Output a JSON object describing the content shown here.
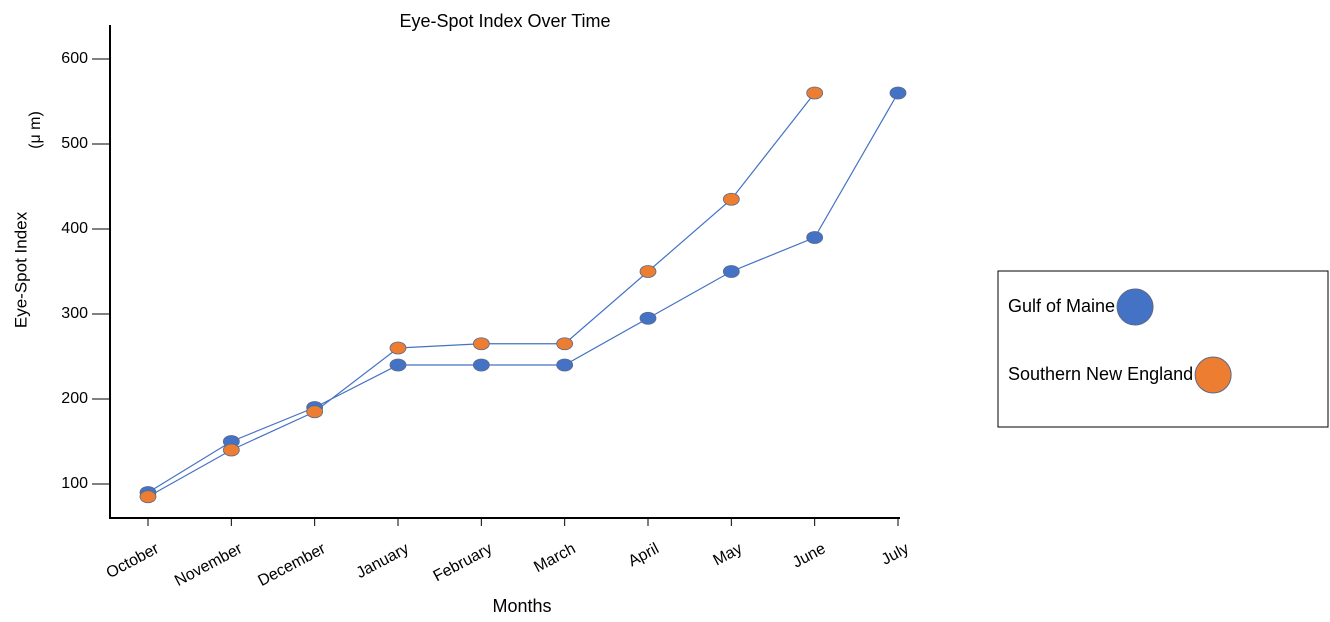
{
  "chart_data": {
    "type": "line",
    "title": "Eye-Spot Index Over Time",
    "x_label": "Months",
    "y_label": "Eye-Spot Index",
    "y_unit": "(μ m)",
    "categories": [
      "October",
      "November",
      "December",
      "January",
      "February",
      "March",
      "April",
      "May",
      "June",
      "July"
    ],
    "series": [
      {
        "name": "Gulf of Maine",
        "color": "#4472c4",
        "values": [
          90,
          150,
          190,
          240,
          240,
          240,
          295,
          350,
          390,
          560
        ]
      },
      {
        "name": "Southern New England",
        "color": "#ed7d31",
        "values": [
          85,
          140,
          185,
          260,
          265,
          265,
          350,
          435,
          560,
          null
        ]
      }
    ],
    "line_color": "#4472c4",
    "ylim": [
      60,
      640
    ],
    "yticks": [
      100,
      200,
      300,
      400,
      500,
      600
    ],
    "legend": "right"
  }
}
